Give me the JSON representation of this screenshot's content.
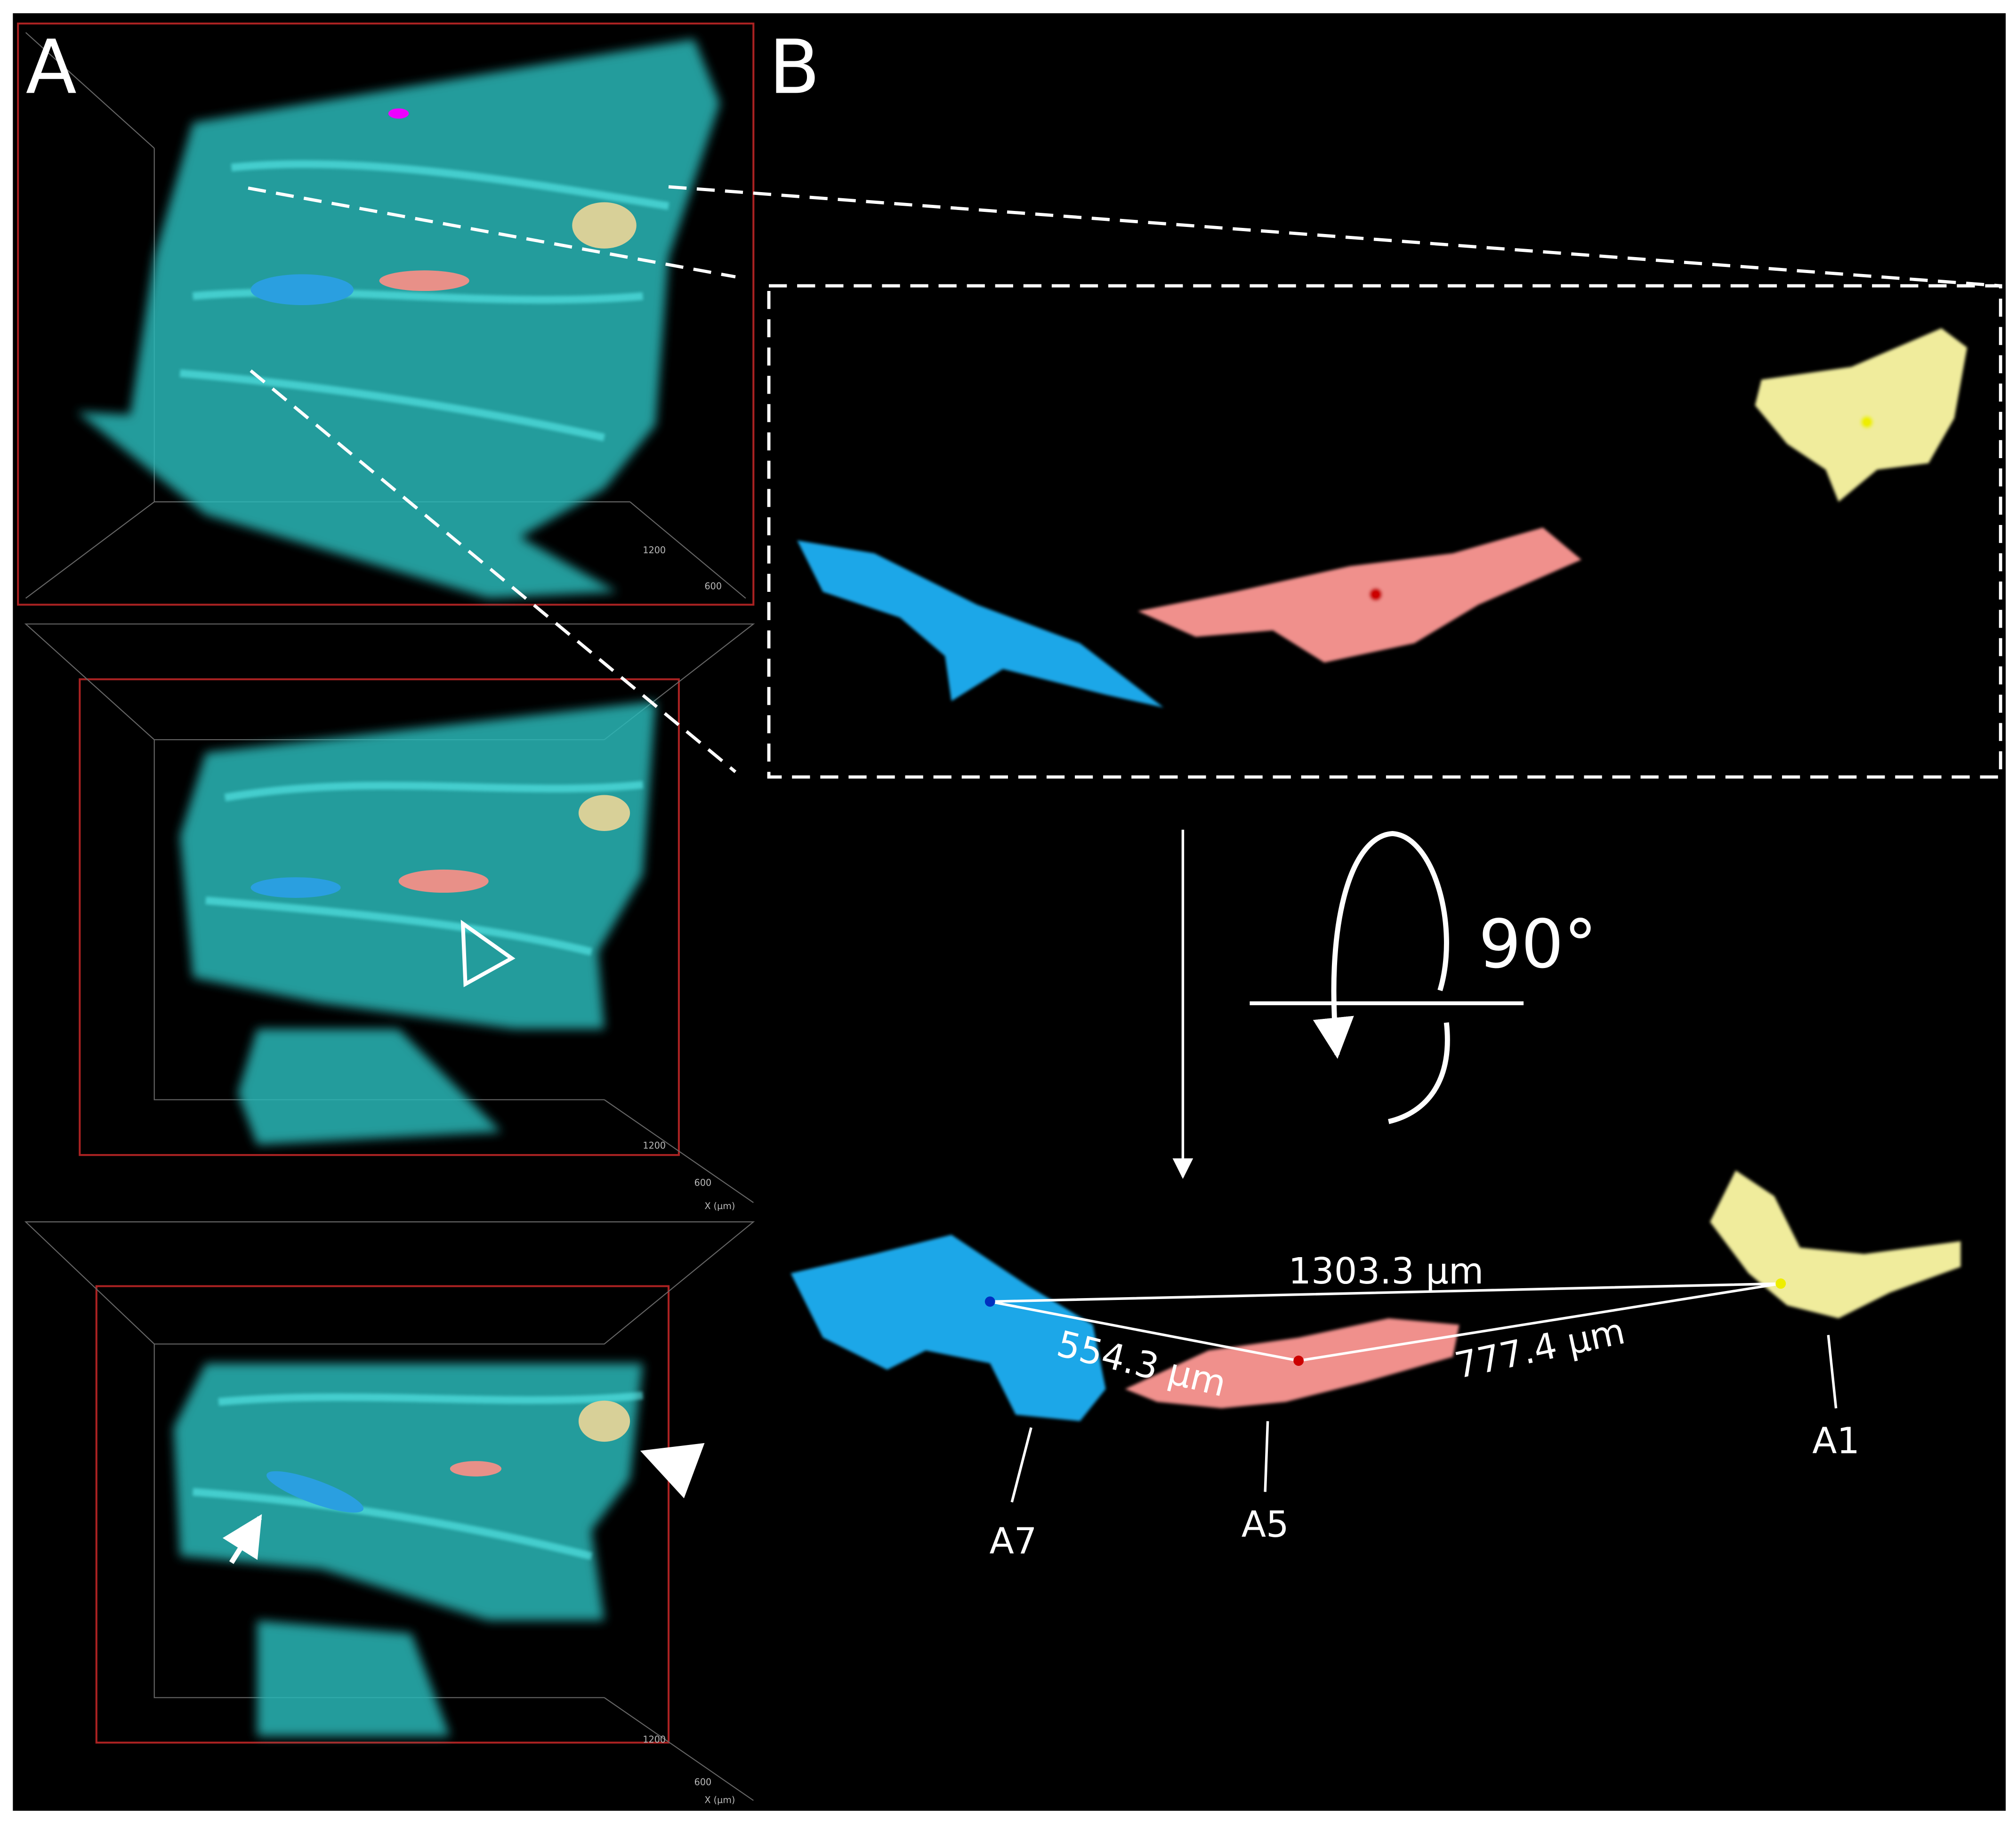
{
  "panel_labels": [
    "A",
    "B"
  ],
  "rotation": "90°",
  "distances": [
    "1303.3 µm",
    "554.3 µm",
    "777.4 µm"
  ],
  "cell_labels": [
    "A7",
    "A5",
    "A1"
  ],
  "axis_labels": [
    "1200",
    "600",
    "X (µm)"
  ]
}
